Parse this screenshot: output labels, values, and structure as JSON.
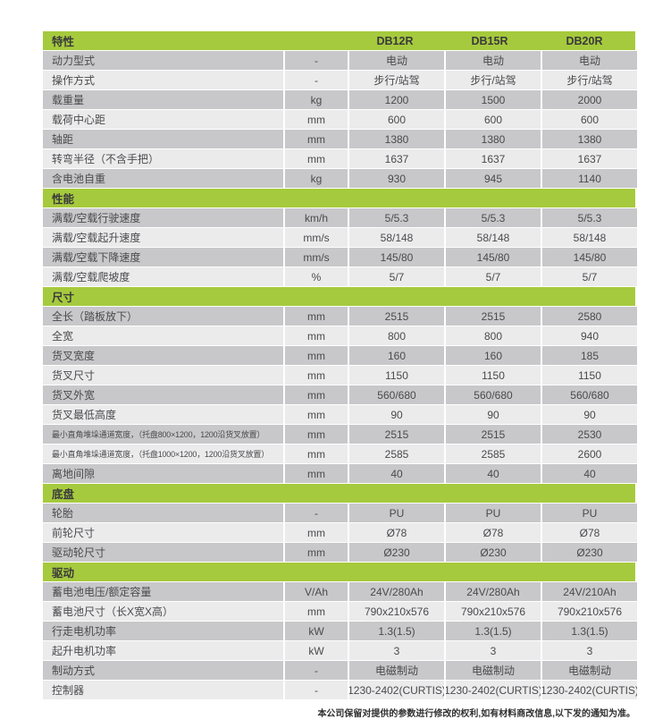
{
  "table": {
    "header": {
      "feature_label": "特性",
      "unit_label": "",
      "models": [
        "DB12R",
        "DB15R",
        "DB20R"
      ]
    },
    "sections": [
      {
        "title": "",
        "rows": [
          {
            "label": "动力型式",
            "unit": "-",
            "values": [
              "电动",
              "电动",
              "电动"
            ]
          },
          {
            "label": "操作方式",
            "unit": "-",
            "values": [
              "步行/站驾",
              "步行/站驾",
              "步行/站驾"
            ]
          },
          {
            "label": "载重量",
            "unit": "kg",
            "values": [
              "1200",
              "1500",
              "2000"
            ]
          },
          {
            "label": "载荷中心距",
            "unit": "mm",
            "values": [
              "600",
              "600",
              "600"
            ]
          },
          {
            "label": "轴距",
            "unit": "mm",
            "values": [
              "1380",
              "1380",
              "1380"
            ]
          },
          {
            "label": "转弯半径（不含手把）",
            "unit": "mm",
            "values": [
              "1637",
              "1637",
              "1637"
            ]
          },
          {
            "label": "含电池自重",
            "unit": "kg",
            "values": [
              "930",
              "945",
              "1140"
            ]
          }
        ]
      },
      {
        "title": "性能",
        "rows": [
          {
            "label": "满载/空载行驶速度",
            "unit": "km/h",
            "values": [
              "5/5.3",
              "5/5.3",
              "5/5.3"
            ]
          },
          {
            "label": "满载/空载起升速度",
            "unit": "mm/s",
            "values": [
              "58/148",
              "58/148",
              "58/148"
            ]
          },
          {
            "label": "满载/空载下降速度",
            "unit": "mm/s",
            "values": [
              "145/80",
              "145/80",
              "145/80"
            ]
          },
          {
            "label": "满载/空载爬坡度",
            "unit": "%",
            "values": [
              "5/7",
              "5/7",
              "5/7"
            ]
          }
        ]
      },
      {
        "title": "尺寸",
        "rows": [
          {
            "label": "全长（踏板放下）",
            "unit": "mm",
            "values": [
              "2515",
              "2515",
              "2580"
            ]
          },
          {
            "label": "全宽",
            "unit": "mm",
            "values": [
              "800",
              "800",
              "940"
            ]
          },
          {
            "label": "货叉宽度",
            "unit": "mm",
            "values": [
              "160",
              "160",
              "185"
            ]
          },
          {
            "label": "货叉尺寸",
            "unit": "mm",
            "values": [
              "1150",
              "1150",
              "1150"
            ]
          },
          {
            "label": "货叉外宽",
            "unit": "mm",
            "values": [
              "560/680",
              "560/680",
              "560/680"
            ]
          },
          {
            "label": "货叉最低高度",
            "unit": "mm",
            "values": [
              "90",
              "90",
              "90"
            ]
          },
          {
            "label": "最小直角堆垛通道宽度，（托盘800×1200，1200沿货叉放置）",
            "unit": "mm",
            "values": [
              "2515",
              "2515",
              "2530"
            ],
            "small": true
          },
          {
            "label": "最小直角堆垛通道宽度，（托盘1000×1200，1200沿货叉放置）",
            "unit": "mm",
            "values": [
              "2585",
              "2585",
              "2600"
            ],
            "small": true
          },
          {
            "label": "离地间隙",
            "unit": "mm",
            "values": [
              "40",
              "40",
              "40"
            ]
          }
        ]
      },
      {
        "title": "底盘",
        "rows": [
          {
            "label": "轮胎",
            "unit": "-",
            "values": [
              "PU",
              "PU",
              "PU"
            ]
          },
          {
            "label": "前轮尺寸",
            "unit": "mm",
            "values": [
              "Ø78",
              "Ø78",
              "Ø78"
            ]
          },
          {
            "label": "驱动轮尺寸",
            "unit": "mm",
            "values": [
              "Ø230",
              "Ø230",
              "Ø230"
            ]
          }
        ]
      },
      {
        "title": "驱动",
        "rows": [
          {
            "label": "蓄电池电压/额定容量",
            "unit": "V/Ah",
            "values": [
              "24V/280Ah",
              "24V/280Ah",
              "24V/210Ah"
            ]
          },
          {
            "label": "蓄电池尺寸（长X宽X高）",
            "unit": "mm",
            "values": [
              "790x210x576",
              "790x210x576",
              "790x210x576"
            ]
          },
          {
            "label": "行走电机功率",
            "unit": "kW",
            "values": [
              "1.3(1.5)",
              "1.3(1.5)",
              "1.3(1.5)"
            ]
          },
          {
            "label": "起升电机功率",
            "unit": "kW",
            "values": [
              "3",
              "3",
              "3"
            ]
          },
          {
            "label": "制动方式",
            "unit": "-",
            "values": [
              "电磁制动",
              "电磁制动",
              "电磁制动"
            ]
          },
          {
            "label": "控制器",
            "unit": "-",
            "values": [
              "1230-2402(CURTIS)",
              "1230-2402(CURTIS)",
              "1230-2402(CURTIS)"
            ]
          }
        ]
      }
    ]
  },
  "footer": {
    "note": "本公司保留对提供的参数进行修改的权利,如有材料商改信息,以下发的通知为准。"
  },
  "colors": {
    "accent_green": "#a6ca3d",
    "row_dark": "#c8c8ca",
    "row_light": "#ebebec",
    "text": "#4a4a4d"
  }
}
